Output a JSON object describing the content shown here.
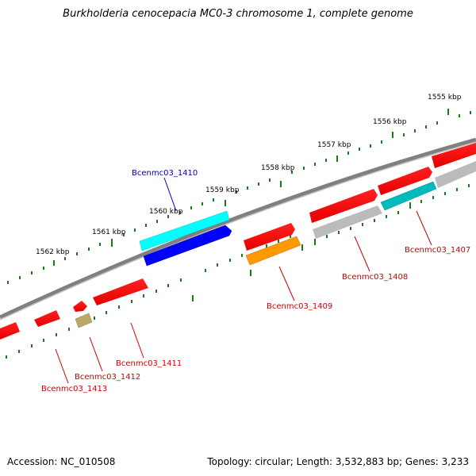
{
  "title": "Burkholderia cenocepacia MC0-3 chromosome 1, complete genome",
  "footer": {
    "accession": "Accession: NC_010508",
    "stats": "Topology: circular; Length: 3,532,883 bp; Genes: 3,233"
  },
  "ruler_labels": [
    "1555 kbp",
    "1556 kbp",
    "1557 kbp",
    "1558 kbp",
    "1559 kbp",
    "1560 kbp",
    "1561 kbp",
    "1562 kbp"
  ],
  "gene_labels": [
    "Bcenmc03_1407",
    "Bcenmc03_1408",
    "Bcenmc03_1409",
    "Bcenmc03_1410",
    "Bcenmc03_1411",
    "Bcenmc03_1412",
    "Bcenmc03_1413"
  ],
  "colors": {
    "backbone": "#808080",
    "tick": "#1a7a1a",
    "cds": "#ff0000",
    "highlight_blue": "#0000ff",
    "highlight_cyan": "#00ffff",
    "orange": "#ff9900",
    "gray_gene": "#bbbbbb",
    "teal": "#00bbbb",
    "olive": "#bbaa66",
    "label_red": "#cc0000",
    "label_blue": "#0000aa"
  }
}
